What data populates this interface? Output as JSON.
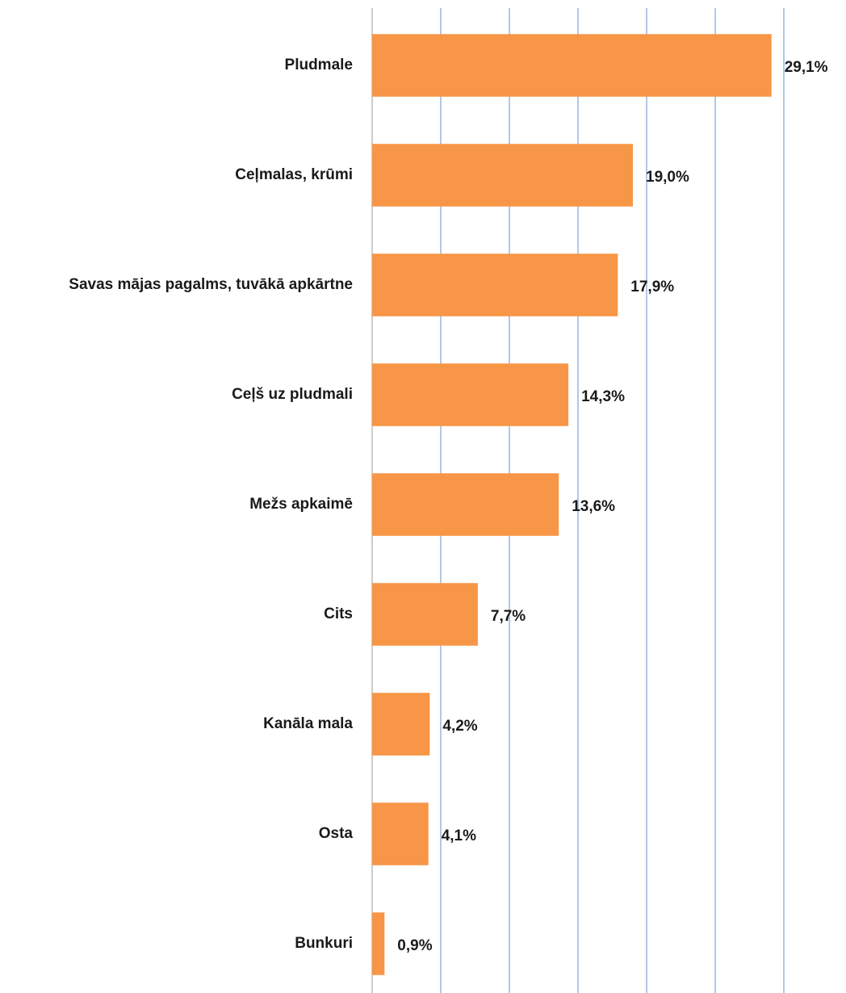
{
  "chart_data": {
    "type": "hbar",
    "categories": [
      "Pludmale",
      "Ceļmalas, krūmi",
      "Savas mājas pagalms, tuvākā apkārtne",
      "Ceļš uz pludmali",
      "Mežs apkaimē",
      "Cits",
      "Kanāla mala",
      "Osta",
      "Bunkuri"
    ],
    "values": [
      29.1,
      19.0,
      17.9,
      14.3,
      13.6,
      7.7,
      4.2,
      4.1,
      0.9
    ],
    "value_labels": [
      "29,1%",
      "19,0%",
      "17,9%",
      "14,3%",
      "13,6%",
      "7,7%",
      "4,2%",
      "4,1%",
      "0,9%"
    ],
    "color": "#f79646",
    "xlim": [
      0,
      30
    ],
    "xticks": [
      0,
      5,
      10,
      15,
      20,
      25,
      30
    ],
    "grid": true
  }
}
